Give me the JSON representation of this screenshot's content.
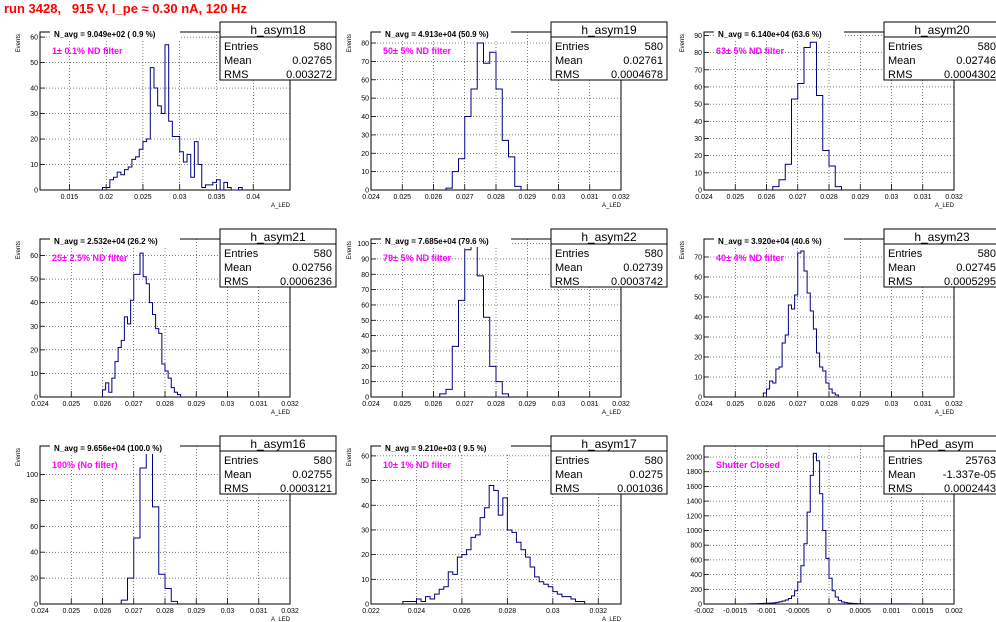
{
  "page_title": "run 3428,   915 V, I_pe ≈ 0.30 nA, 120 Hz",
  "chart_data": [
    {
      "type": "bar",
      "histogram": "h_asym18",
      "annotation": "N_avg = 9.049e+02 ( 0.9 %)",
      "filter_label": "1± 0.1% ND filter",
      "stats": {
        "Entries": "580",
        "Mean": "0.02765",
        "RMS": "0.003272"
      },
      "ylabel": "Events",
      "xlabel": "A_LED",
      "xlim": [
        0.011,
        0.045
      ],
      "ylim": [
        0,
        62
      ],
      "xticks": [
        0.015,
        0.02,
        0.025,
        0.03,
        0.035,
        0.04
      ],
      "xtick_labels": [
        "0.015",
        "0.02",
        "0.025",
        "0.03",
        "0.035",
        "0.04"
      ],
      "yticks": [
        0,
        10,
        20,
        30,
        40,
        50,
        60
      ],
      "bin_start": 0.0195,
      "bin_width": 0.0005,
      "values": [
        1,
        1,
        4,
        5,
        7,
        6,
        8,
        9,
        12,
        13,
        16,
        19,
        20,
        48,
        40,
        33,
        30,
        57,
        27,
        21,
        21,
        15,
        11,
        14,
        5,
        19,
        10,
        1,
        2,
        2,
        3,
        4,
        0,
        3,
        1,
        0,
        0,
        1
      ]
    },
    {
      "type": "bar",
      "histogram": "h_asym19",
      "annotation": "N_avg = 4.913e+04 (50.9 %)",
      "filter_label": "50± 5% ND filter",
      "stats": {
        "Entries": "580",
        "Mean": "0.02761",
        "RMS": "0.0004678"
      },
      "ylabel": "Events",
      "xlabel": "A_LED",
      "xlim": [
        0.024,
        0.032
      ],
      "ylim": [
        0,
        86
      ],
      "xticks": [
        0.024,
        0.025,
        0.026,
        0.027,
        0.028,
        0.029,
        0.03,
        0.031,
        0.032
      ],
      "xtick_labels": [
        "0.024",
        "0.025",
        "0.026",
        "0.027",
        "0.028",
        "0.029",
        "0.03",
        "0.031",
        "0.032"
      ],
      "yticks": [
        0,
        10,
        20,
        30,
        40,
        50,
        60,
        70,
        80
      ],
      "bin_start": 0.0264,
      "bin_width": 0.0002,
      "values": [
        1,
        10,
        17,
        40,
        55,
        80,
        69,
        75,
        55,
        27,
        18,
        2
      ]
    },
    {
      "type": "bar",
      "histogram": "h_asym20",
      "annotation": "N_avg = 6.140e+04 (63.6 %)",
      "filter_label": "63± 5% ND filter",
      "stats": {
        "Entries": "580",
        "Mean": "0.02746",
        "RMS": "0.0004302"
      },
      "ylabel": "Events",
      "xlabel": "A_LED",
      "xlim": [
        0.024,
        0.032
      ],
      "ylim": [
        0,
        92
      ],
      "xticks": [
        0.024,
        0.025,
        0.026,
        0.027,
        0.028,
        0.029,
        0.03,
        0.031,
        0.032
      ],
      "xtick_labels": [
        "0.024",
        "0.025",
        "0.026",
        "0.027",
        "0.028",
        "0.029",
        "0.03",
        "0.031",
        "0.032"
      ],
      "yticks": [
        0,
        10,
        20,
        30,
        40,
        50,
        60,
        70,
        80,
        90
      ],
      "bin_start": 0.0262,
      "bin_width": 0.0002,
      "values": [
        2,
        6,
        15,
        53,
        62,
        83,
        86,
        55,
        23,
        14,
        2
      ]
    },
    {
      "type": "bar",
      "histogram": "h_asym21",
      "annotation": "N_avg = 2.532e+04 (26.2 %)",
      "filter_label": "25± 2.5% ND filter",
      "stats": {
        "Entries": "580",
        "Mean": "0.02756",
        "RMS": "0.0006236"
      },
      "ylabel": "Events",
      "xlabel": "A_LED",
      "xlim": [
        0.024,
        0.032
      ],
      "ylim": [
        0,
        67
      ],
      "xticks": [
        0.024,
        0.025,
        0.026,
        0.027,
        0.028,
        0.029,
        0.03,
        0.031,
        0.032
      ],
      "xtick_labels": [
        "0.024",
        "0.025",
        "0.026",
        "0.027",
        "0.028",
        "0.029",
        "0.03",
        "0.031",
        "0.032"
      ],
      "yticks": [
        0,
        10,
        20,
        30,
        40,
        50,
        60
      ],
      "bin_start": 0.026,
      "bin_width": 0.0001,
      "values": [
        3,
        6,
        2,
        8,
        15,
        21,
        24,
        34,
        31,
        41,
        52,
        52,
        61,
        51,
        48,
        40,
        35,
        29,
        27,
        14,
        11,
        8,
        4,
        2,
        1
      ]
    },
    {
      "type": "bar",
      "histogram": "h_asym22",
      "annotation": "N_avg = 7.685e+04 (79.6 %)",
      "filter_label": "79± 5% ND filter",
      "stats": {
        "Entries": "580",
        "Mean": "0.02739",
        "RMS": "0.0003742"
      },
      "ylabel": "Events",
      "xlabel": "A_LED",
      "xlim": [
        0.024,
        0.032
      ],
      "ylim": [
        0,
        103
      ],
      "xticks": [
        0.024,
        0.025,
        0.026,
        0.027,
        0.028,
        0.029,
        0.03,
        0.031,
        0.032
      ],
      "xtick_labels": [
        "0.024",
        "0.025",
        "0.026",
        "0.027",
        "0.028",
        "0.029",
        "0.03",
        "0.031",
        "0.032"
      ],
      "yticks": [
        0,
        10,
        20,
        30,
        40,
        50,
        60,
        70,
        80,
        90,
        100
      ],
      "bin_start": 0.0262,
      "bin_width": 0.0002,
      "values": [
        2,
        5,
        33,
        63,
        96,
        100,
        79,
        52,
        20,
        10,
        2
      ]
    },
    {
      "type": "bar",
      "histogram": "h_asym23",
      "annotation": "N_avg = 3.920e+04 (40.6 %)",
      "filter_label": "40± 4% ND filter",
      "stats": {
        "Entries": "580",
        "Mean": "0.02745",
        "RMS": "0.0005295"
      },
      "ylabel": "Events",
      "xlabel": "A_LED",
      "xlim": [
        0.024,
        0.032
      ],
      "ylim": [
        0,
        79
      ],
      "xticks": [
        0.024,
        0.025,
        0.026,
        0.027,
        0.028,
        0.029,
        0.03,
        0.031,
        0.032
      ],
      "xtick_labels": [
        "0.024",
        "0.025",
        "0.026",
        "0.027",
        "0.028",
        "0.029",
        "0.03",
        "0.031",
        "0.032"
      ],
      "yticks": [
        0,
        10,
        20,
        30,
        40,
        50,
        60,
        70
      ],
      "bin_start": 0.0259,
      "bin_width": 0.0001,
      "values": [
        2,
        4,
        8,
        7,
        14,
        15,
        27,
        31,
        46,
        44,
        51,
        72,
        73,
        63,
        52,
        43,
        34,
        22,
        15,
        13,
        7,
        4,
        2,
        1
      ]
    },
    {
      "type": "bar",
      "histogram": "h_asym16",
      "annotation": "N_avg = 9.656e+04 (100.0 %)",
      "filter_label": "100% (No filter)",
      "stats": {
        "Entries": "580",
        "Mean": "0.02755",
        "RMS": "0.0003121"
      },
      "ylabel": "Events",
      "xlabel": "A_LED",
      "xlim": [
        0.024,
        0.032
      ],
      "ylim": [
        0,
        122
      ],
      "xticks": [
        0.024,
        0.025,
        0.026,
        0.027,
        0.028,
        0.029,
        0.03,
        0.031,
        0.032
      ],
      "xtick_labels": [
        "0.024",
        "0.025",
        "0.026",
        "0.027",
        "0.028",
        "0.029",
        "0.03",
        "0.031",
        "0.032"
      ],
      "yticks": [
        0,
        20,
        40,
        60,
        80,
        100
      ],
      "bin_start": 0.0266,
      "bin_width": 0.0002,
      "values": [
        3,
        20,
        51,
        105,
        120,
        75,
        23,
        12,
        2
      ]
    },
    {
      "type": "bar",
      "histogram": "h_asym17",
      "annotation": "N_avg = 9.210e+03 ( 9.5 %)",
      "filter_label": "10± 1% ND filter",
      "stats": {
        "Entries": "580",
        "Mean": "0.0275",
        "RMS": "0.001036"
      },
      "ylabel": "Events",
      "xlabel": "A_LED",
      "xlim": [
        0.022,
        0.033
      ],
      "ylim": [
        0,
        64
      ],
      "xticks": [
        0.022,
        0.024,
        0.026,
        0.028,
        0.03,
        0.032
      ],
      "xtick_labels": [
        "0.022",
        "0.024",
        "0.026",
        "0.028",
        "0.03",
        "0.032"
      ],
      "yticks": [
        0,
        10,
        20,
        30,
        40,
        50,
        60
      ],
      "bin_start": 0.0234,
      "bin_width": 0.0002,
      "values": [
        1,
        1,
        1,
        2,
        1,
        3,
        2,
        4,
        6,
        7,
        13,
        12,
        19,
        20,
        22,
        27,
        28,
        35,
        39,
        48,
        46,
        36,
        43,
        30,
        29,
        25,
        22,
        19,
        15,
        11,
        9,
        8,
        7,
        5,
        4,
        3,
        3,
        2,
        1,
        1
      ]
    },
    {
      "type": "bar",
      "histogram": "hPed_asym",
      "annotation": "",
      "filter_label": "Shutter Closed",
      "stats": {
        "Entries": "25763",
        "Mean": "-1.337e-05",
        "RMS": "0.0002443"
      },
      "ylabel": "",
      "xlabel": "",
      "xlim": [
        -0.002,
        0.002
      ],
      "ylim": [
        0,
        2150
      ],
      "xticks": [
        -0.002,
        -0.0015,
        -0.001,
        -0.0005,
        0,
        0.0005,
        0.001,
        0.0015,
        0.002
      ],
      "xtick_labels": [
        "-0.002",
        "-0.0015",
        "-0.001",
        "-0.0005",
        "0",
        "0.0005",
        "0.001",
        "0.0015",
        "0.002"
      ],
      "yticks": [
        0,
        200,
        400,
        600,
        800,
        1000,
        1200,
        1400,
        1600,
        1800,
        2000
      ],
      "bin_start": -0.0013,
      "bin_width": 5e-05,
      "values": [
        2,
        3,
        3,
        5,
        6,
        8,
        10,
        12,
        16,
        22,
        30,
        40,
        55,
        75,
        110,
        180,
        300,
        520,
        820,
        1250,
        1750,
        2050,
        1950,
        1500,
        1000,
        620,
        350,
        180,
        95,
        50,
        28,
        18,
        12,
        8,
        6,
        4,
        3,
        2,
        2,
        1,
        1,
        1,
        1,
        1,
        1,
        1,
        1,
        1,
        1,
        1,
        1,
        1
      ]
    }
  ]
}
